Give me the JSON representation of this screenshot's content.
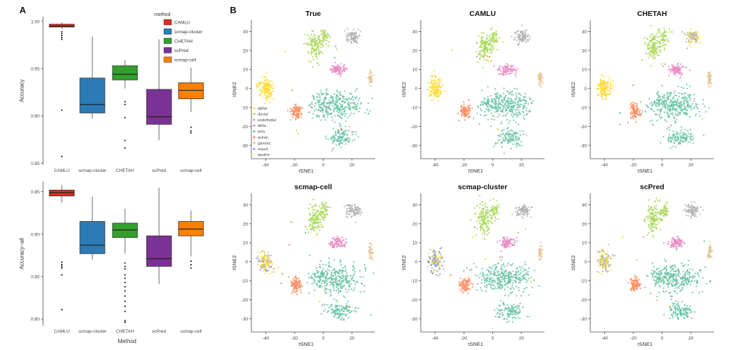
{
  "panels": {
    "a": "A",
    "b": "B"
  },
  "colors": {
    "CAMLU": "#d7301f",
    "scmap-cluster": "#2c7bb6",
    "CHETAH": "#33a02c",
    "scPred": "#7b3294",
    "scmap-cell": "#ff7f00",
    "alpha": "#ffd92f",
    "ductal": "#a6d854",
    "endothelial": "#b3b3b3",
    "delta": "#e78ac3",
    "beta": "#66c2a5",
    "acinar": "#fc8d62",
    "gamma": "#e5c494",
    "mixed": "#8da0cb",
    "epsilon": "#ffffb3"
  },
  "chart_data": [
    {
      "type": "box",
      "id": "accuracy",
      "ylabel": "Accuracy",
      "xlabel": "",
      "ylim": [
        0.848,
        1.005
      ],
      "yticks": [
        0.85,
        0.9,
        0.95,
        1.0
      ],
      "ytick_labels": [
        "0.85",
        "0.90",
        "0.95",
        "1.00"
      ],
      "categories": [
        "CAMLU",
        "scmap-cluster",
        "CHETAH",
        "scPred",
        "scmap-cell"
      ],
      "legend": {
        "title": "method",
        "position": "top-right",
        "entries": [
          "CAMLU",
          "scmap-cluster",
          "CHETAH",
          "scPred",
          "scmap-cell"
        ]
      },
      "boxes": [
        {
          "method": "CAMLU",
          "q1": 0.994,
          "median": 0.995,
          "q3": 0.997,
          "whisker_low": 0.992,
          "whisker_high": 0.999,
          "outliers": [
            0.989,
            0.987,
            0.985,
            0.983,
            0.981,
            0.906,
            0.857
          ]
        },
        {
          "method": "scmap-cluster",
          "q1": 0.903,
          "median": 0.912,
          "q3": 0.94,
          "whisker_low": 0.897,
          "whisker_high": 0.984,
          "outliers": []
        },
        {
          "method": "CHETAH",
          "q1": 0.938,
          "median": 0.944,
          "q3": 0.953,
          "whisker_low": 0.929,
          "whisker_high": 0.959,
          "outliers": [
            0.915,
            0.912,
            0.898,
            0.874,
            0.866
          ]
        },
        {
          "method": "scPred",
          "q1": 0.891,
          "median": 0.899,
          "q3": 0.928,
          "whisker_low": 0.874,
          "whisker_high": 0.981,
          "outliers": []
        },
        {
          "method": "scmap-cell",
          "q1": 0.918,
          "median": 0.927,
          "q3": 0.935,
          "whisker_low": 0.904,
          "whisker_high": 0.951,
          "outliers": [
            0.888,
            0.884,
            0.882
          ]
        }
      ]
    },
    {
      "type": "box",
      "id": "accuracy-all",
      "ylabel": "Accuracy−all",
      "xlabel": "Method",
      "ylim": [
        0.792,
        0.962
      ],
      "yticks": [
        0.8,
        0.85,
        0.9,
        0.95
      ],
      "ytick_labels": [
        "0.80",
        "0.85",
        "0.90",
        "0.95"
      ],
      "categories": [
        "CAMLU",
        "scmap-cluster",
        "CHETAH",
        "scPred",
        "scmap-cell"
      ],
      "boxes": [
        {
          "method": "CAMLU",
          "q1": 0.945,
          "median": 0.949,
          "q3": 0.952,
          "whisker_low": 0.937,
          "whisker_high": 0.958,
          "outliers": [
            0.867,
            0.864,
            0.862,
            0.86,
            0.852,
            0.811
          ]
        },
        {
          "method": "scmap-cluster",
          "q1": 0.877,
          "median": 0.887,
          "q3": 0.915,
          "whisker_low": 0.87,
          "whisker_high": 0.944,
          "outliers": []
        },
        {
          "method": "CHETAH",
          "q1": 0.896,
          "median": 0.905,
          "q3": 0.913,
          "whisker_low": 0.877,
          "whisker_high": 0.93,
          "outliers": [
            0.866,
            0.862,
            0.859,
            0.852,
            0.848,
            0.843,
            0.838,
            0.833,
            0.827,
            0.821,
            0.815,
            0.809,
            0.798,
            0.796
          ]
        },
        {
          "method": "scPred",
          "q1": 0.862,
          "median": 0.871,
          "q3": 0.898,
          "whisker_low": 0.841,
          "whisker_high": 0.955,
          "outliers": []
        },
        {
          "method": "scmap-cell",
          "q1": 0.898,
          "median": 0.906,
          "q3": 0.915,
          "whisker_low": 0.874,
          "whisker_high": 0.928,
          "outliers": [
            0.868,
            0.864,
            0.86
          ]
        }
      ]
    },
    {
      "type": "scatter",
      "id": "tsne",
      "xlabel": "tSNE1",
      "ylabel": "tSNE2",
      "xlim": [
        -50,
        36
      ],
      "ylim": [
        -37,
        36
      ],
      "xticks": [
        -40,
        -20,
        0,
        20
      ],
      "yticks": [
        -30,
        -20,
        -10,
        0,
        10,
        20,
        30
      ],
      "legend": {
        "position": "bottom-left of first panel",
        "entries": [
          "alpha",
          "ductal",
          "endothelial",
          "delta",
          "beta",
          "acinar",
          "gamma",
          "mixed",
          "epsilon"
        ]
      },
      "clusters": [
        {
          "id": "alpha",
          "x": -40,
          "y": 0,
          "label": "alpha"
        },
        {
          "id": "ductal",
          "x": -3,
          "y": 24,
          "label": "ductal"
        },
        {
          "id": "endothelial",
          "x": 21,
          "y": 27,
          "label": "endothelial"
        },
        {
          "id": "delta",
          "x": 10,
          "y": 10,
          "label": "delta"
        },
        {
          "id": "beta",
          "x": 9,
          "y": -17,
          "label": "beta"
        },
        {
          "id": "acinar",
          "x": -19,
          "y": -12,
          "label": "acinar"
        },
        {
          "id": "gamma",
          "x": 33,
          "y": 5,
          "label": "gamma"
        }
      ],
      "panels": [
        {
          "title": "True",
          "assign": {}
        },
        {
          "title": "CAMLU",
          "assign": {}
        },
        {
          "title": "CHETAH",
          "assign": {
            "endothelial": "mixed-yellow"
          }
        },
        {
          "title": "scmap-cell",
          "assign": {
            "alpha": "mixed-blue"
          }
        },
        {
          "title": "scmap-cluster",
          "assign": {
            "alpha": "mixed"
          }
        },
        {
          "title": "scPred",
          "assign": {
            "alpha": "endothelial"
          }
        }
      ]
    }
  ]
}
